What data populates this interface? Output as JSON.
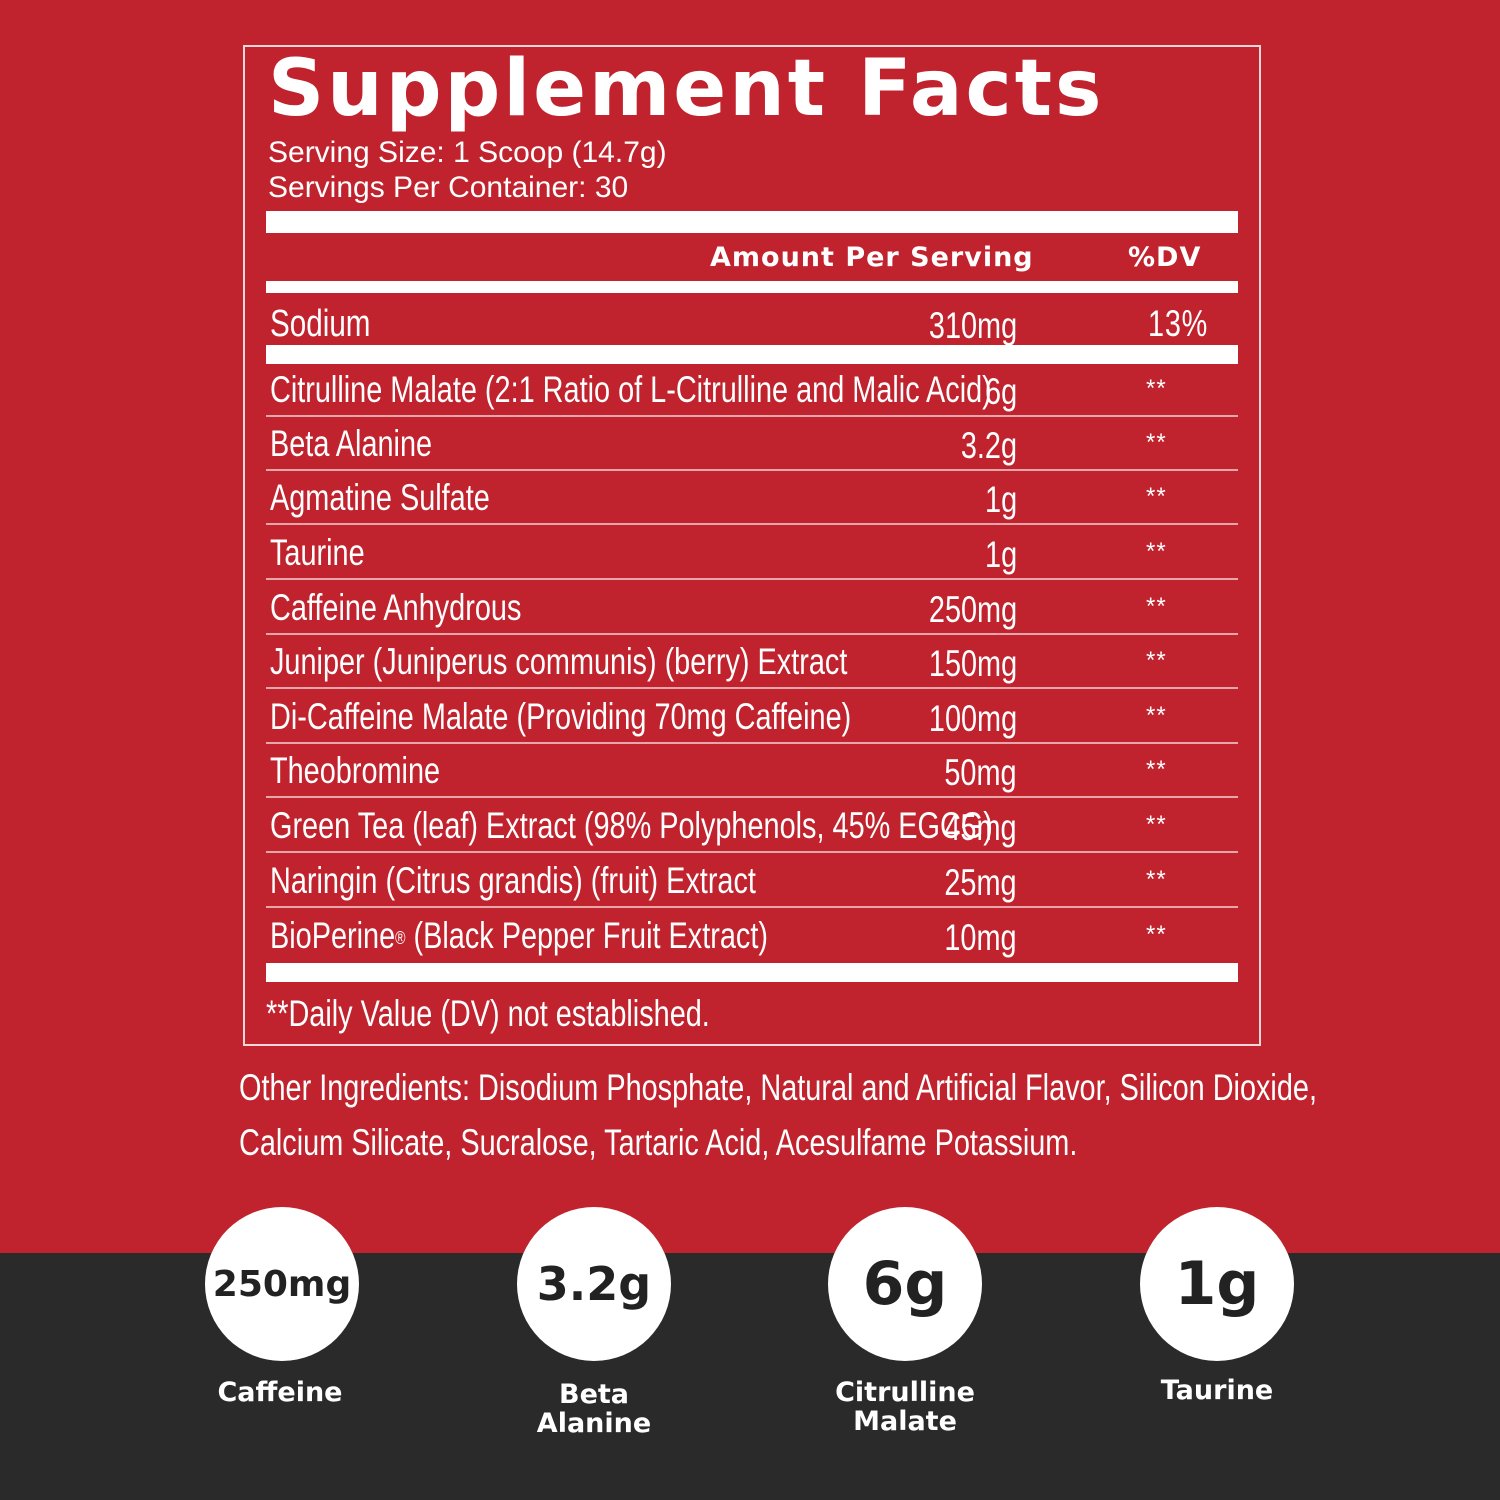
{
  "panel": {
    "title": "Supplement Facts",
    "serving_size": "Serving Size: 1 Scoop (14.7g)",
    "servings_per_container": "Servings Per Container: 30",
    "header_amount": "Amount Per Serving",
    "header_dv": "%DV",
    "sodium": {
      "name": "Sodium",
      "amount": "310mg",
      "dv": "13%"
    },
    "ingredients": [
      {
        "name": "Citrulline Malate (2:1 Ratio of L-Citrulline and Malic Acid)",
        "amount": "6g",
        "dv": "**"
      },
      {
        "name": "Beta Alanine",
        "amount": "3.2g",
        "dv": "**"
      },
      {
        "name": "Agmatine Sulfate",
        "amount": "1g",
        "dv": "**"
      },
      {
        "name": "Taurine",
        "amount": "1g",
        "dv": "**"
      },
      {
        "name": "Caffeine Anhydrous",
        "amount": "250mg",
        "dv": "**"
      },
      {
        "name": "Juniper (Juniperus communis) (berry) Extract",
        "amount": "150mg",
        "dv": "**"
      },
      {
        "name": "Di-Caffeine Malate (Providing 70mg Caffeine)",
        "amount": "100mg",
        "dv": "**"
      },
      {
        "name": "Theobromine",
        "amount": "50mg",
        "dv": "**"
      },
      {
        "name": "Green Tea (leaf) Extract (98% Polyphenols, 45% EGCG)",
        "amount": "45mg",
        "dv": "**"
      },
      {
        "name": "Naringin (Citrus grandis) (fruit) Extract",
        "amount": "25mg",
        "dv": "**"
      },
      {
        "name": "BioPerine",
        "name_mark": "®",
        "name_rest": " (Black Pepper Fruit Extract)",
        "amount": "10mg",
        "dv": "**"
      }
    ],
    "footnote": "**Daily Value (DV) not established."
  },
  "other_ingredients": {
    "line1": "Other Ingredients: Disodium Phosphate, Natural and Artificial Flavor, Silicon Dioxide,",
    "line2": "Calcium Silicate, Sucralose, Tartaric Acid, Acesulfame Potassium."
  },
  "highlights": [
    {
      "value": "250mg",
      "label_line1": "Caffeine",
      "label_line2": ""
    },
    {
      "value": "3.2g",
      "label_line1": "Beta",
      "label_line2": "Alanine"
    },
    {
      "value": "6g",
      "label_line1": "Citrulline",
      "label_line2": "Malate"
    },
    {
      "value": "1g",
      "label_line1": "Taurine",
      "label_line2": ""
    }
  ],
  "colors": {
    "brand_red": "#c1232e",
    "dark_band": "#2a2a2a",
    "white": "#ffffff"
  }
}
